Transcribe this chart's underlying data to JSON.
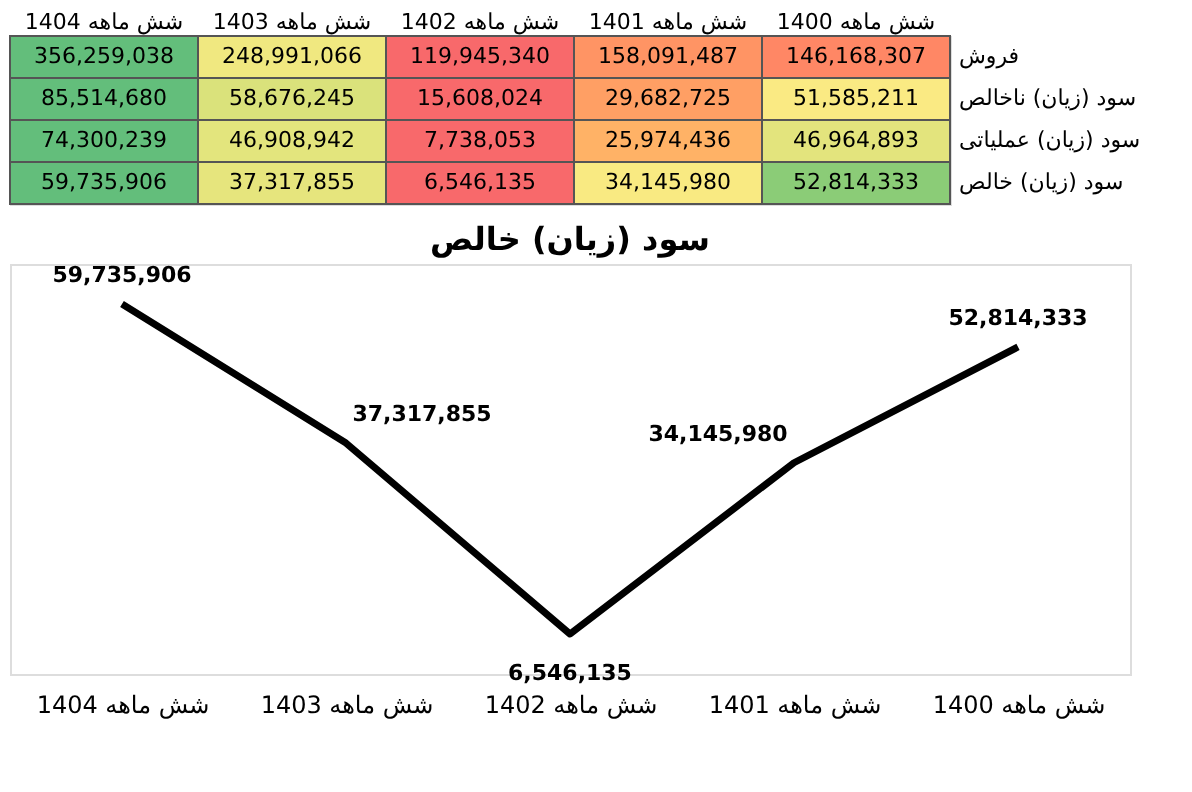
{
  "chart_data": [
    {
      "type": "heatmap",
      "categories": [
        "شش ماهه 1404",
        "شش ماهه 1403",
        "شش ماهه 1402",
        "شش ماهه 1401",
        "شش ماهه 1400"
      ],
      "y_categories": [
        "فروش",
        "سود (زیان) ناخالص",
        "سود (زیان) عملیاتی",
        "سود (زیان) خالص"
      ],
      "cells": [
        [
          356259038,
          248991066,
          119945340,
          158091487,
          146168307
        ],
        [
          85514680,
          58676245,
          15608024,
          29682725,
          51585211
        ],
        [
          74300239,
          46908942,
          7738053,
          25974436,
          46964893
        ],
        [
          59735906,
          37317855,
          6546135,
          34145980,
          52814333
        ]
      ],
      "cell_labels": [
        [
          "356,259,038",
          "248,991,066",
          "119,945,340",
          "158,091,487",
          "146,168,307"
        ],
        [
          "85,514,680",
          "58,676,245",
          "15,608,024",
          "29,682,725",
          "51,585,211"
        ],
        [
          "74,300,239",
          "46,908,942",
          "7,738,053",
          "25,974,436",
          "46,964,893"
        ],
        [
          "59,735,906",
          "37,317,855",
          "6,546,135",
          "34,145,980",
          "52,814,333"
        ]
      ]
    },
    {
      "type": "line",
      "title": "سود (زیان) خالص",
      "categories": [
        "شش ماهه 1404",
        "شش ماهه 1403",
        "شش ماهه 1402",
        "شش ماهه 1401",
        "شش ماهه 1400"
      ],
      "series": [
        {
          "color": "#000000",
          "values": [
            59735906,
            37317855,
            6546135,
            34145980,
            52814333
          ],
          "value_labels": [
            "59,735,906",
            "37,317,855",
            "6,546,135",
            "34,145,980",
            "52,814,333"
          ]
        }
      ],
      "marker": "none",
      "line_style": "solid",
      "grid": false
    }
  ]
}
